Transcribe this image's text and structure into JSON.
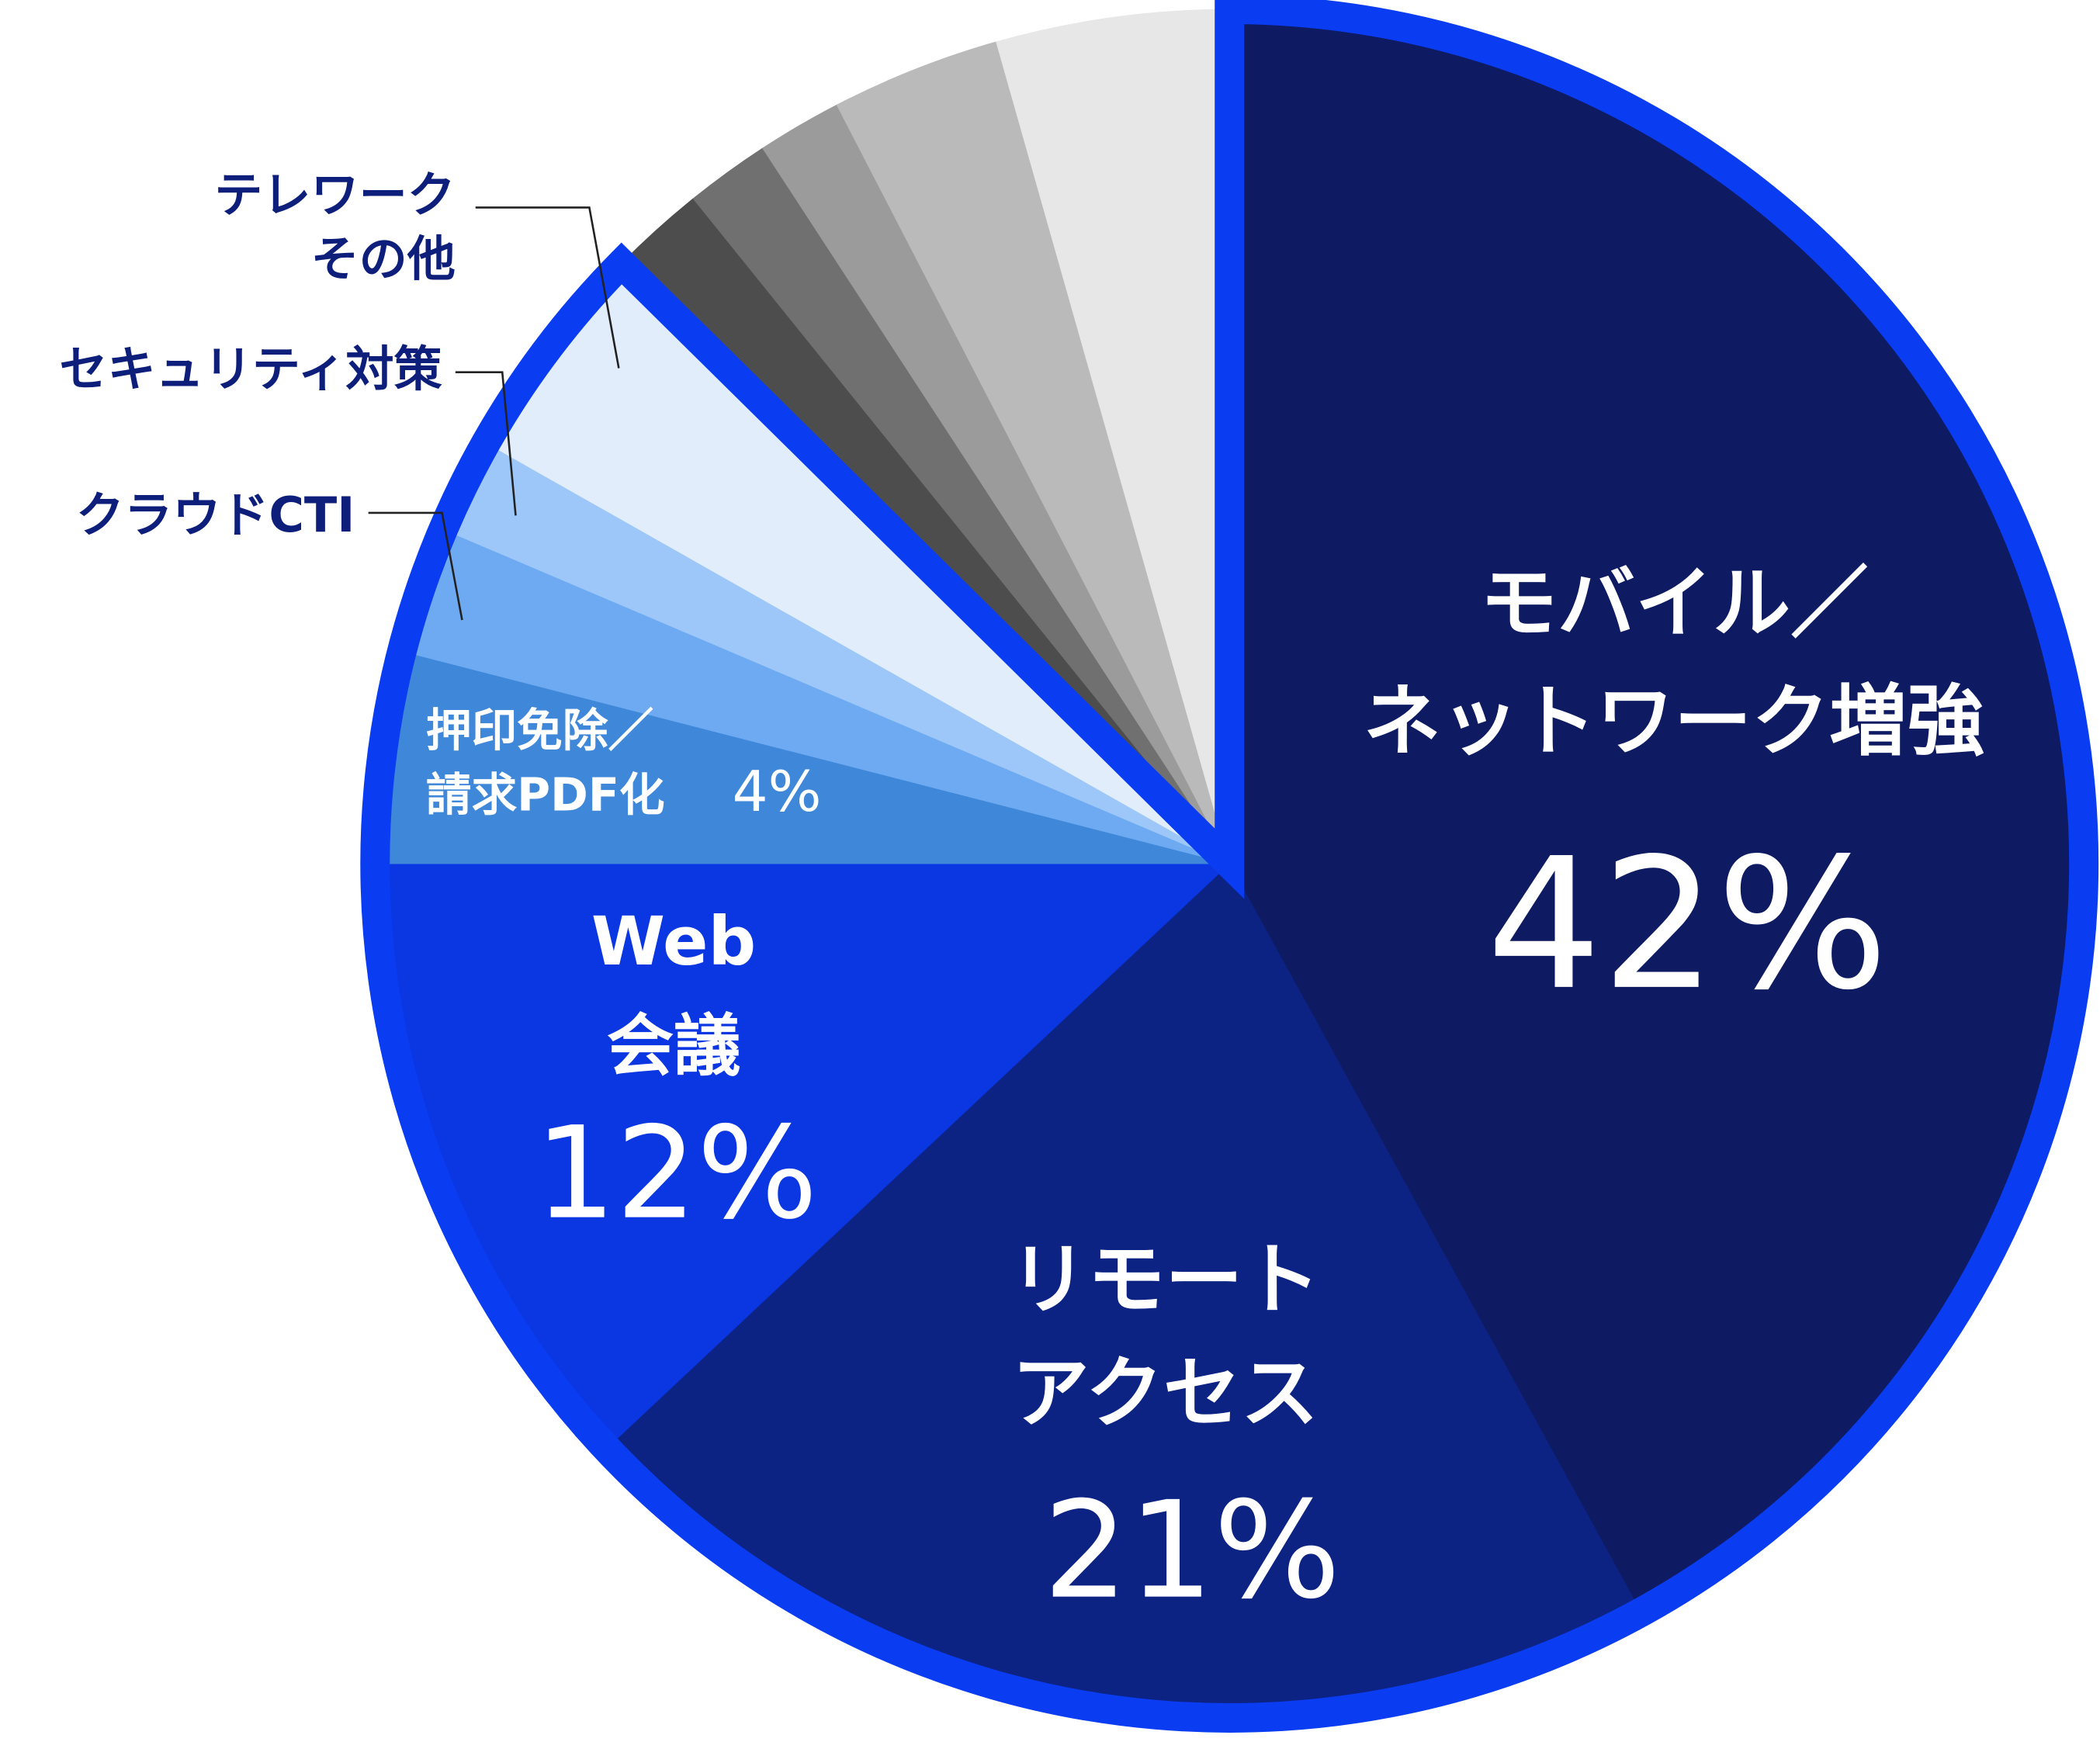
{
  "chart_data": {
    "type": "pie",
    "categories": [
      "モバイル／\nネットワーク増強",
      "リモート\nアクセス",
      "Web\n会議",
      "押印免除／\n請求PDF化",
      "クラウドCTI",
      "セキュリティ対策",
      "テレワーク\nその他",
      null,
      null,
      null,
      null,
      null
    ],
    "values": [
      42,
      21,
      12,
      4,
      2.4,
      1.8,
      4.2,
      1.8,
      1.6,
      1.6,
      3.2,
      4.4
    ],
    "value_labels": [
      "42%",
      "21%",
      "12%",
      "4%",
      null,
      null,
      null,
      null,
      null,
      null,
      null,
      null
    ],
    "colors": [
      "#0e1b62",
      "#0c2384",
      "#0b37e2",
      "#3f87d9",
      "#6eaaf1",
      "#9cc7f8",
      "#e1edfb",
      "#4d4d4d",
      "#707070",
      "#9b9b9b",
      "#bababa",
      "#e7e7e7"
    ],
    "highlight_color": "#0a3cf2"
  }
}
